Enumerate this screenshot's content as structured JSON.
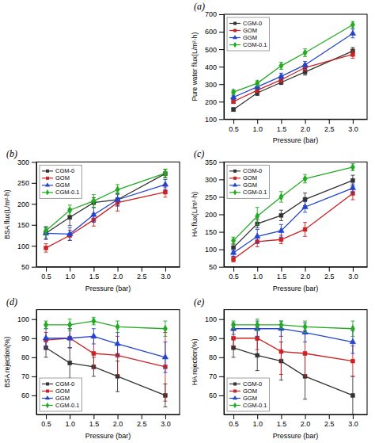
{
  "chart_data": [
    {
      "type": "line",
      "title": "(a)",
      "x_label": "Pressure (bar)",
      "y_label": "Pure water flux(L/m²·h)",
      "x": [
        0.5,
        1.0,
        1.5,
        2.0,
        3.0
      ],
      "xlim": [
        0.3,
        3.3
      ],
      "xticks": [
        0.5,
        {
          "value": 1.0,
          "label": "1.0"
        },
        1.5,
        {
          "value": 2.0,
          "label": "2.0"
        },
        2.5,
        {
          "value": 3.0,
          "label": "3.0"
        }
      ],
      "ylim": [
        100,
        700
      ],
      "yticks": [
        100,
        200,
        300,
        400,
        500,
        600,
        700
      ],
      "grid": false,
      "legend": "upper left",
      "series": [
        {
          "name": "CGM-0",
          "color": "#333333",
          "marker": "square",
          "values": [
            155,
            250,
            310,
            370,
            490
          ],
          "errors": [
            10,
            15,
            12,
            18,
            20
          ]
        },
        {
          "name": "GOM",
          "color": "#cc2222",
          "marker": "square",
          "values": [
            200,
            265,
            325,
            395,
            470
          ],
          "errors": [
            10,
            12,
            15,
            18,
            22
          ]
        },
        {
          "name": "GGM",
          "color": "#2244cc",
          "marker": "triangle",
          "values": [
            225,
            285,
            345,
            410,
            590
          ],
          "errors": [
            12,
            15,
            18,
            20,
            25
          ]
        },
        {
          "name": "CGM-0.1",
          "color": "#22aa22",
          "marker": "diamond",
          "values": [
            255,
            305,
            405,
            480,
            640
          ],
          "errors": [
            12,
            15,
            20,
            22,
            18
          ]
        }
      ]
    },
    {
      "type": "line",
      "title": "(b)",
      "x_label": "Pressure (bar)",
      "y_label": "BSA flux(L/m²·h)",
      "x": [
        0.5,
        1.0,
        1.5,
        2.0,
        3.0
      ],
      "xlim": [
        0.3,
        3.3
      ],
      "xticks": [
        0.5,
        {
          "value": 1.0,
          "label": "1.0"
        },
        1.5,
        {
          "value": 2.0,
          "label": "2.0"
        },
        2.5,
        {
          "value": 3.0,
          "label": "3.0"
        }
      ],
      "ylim": [
        50,
        300
      ],
      "yticks": [
        50,
        100,
        150,
        200,
        250,
        300
      ],
      "grid": false,
      "legend": "upper left",
      "series": [
        {
          "name": "CGM-0",
          "color": "#333333",
          "marker": "square",
          "values": [
            130,
            168,
            203,
            210,
            272
          ],
          "errors": [
            15,
            20,
            12,
            15,
            10
          ]
        },
        {
          "name": "GOM",
          "color": "#cc2222",
          "marker": "square",
          "values": [
            95,
            125,
            162,
            203,
            228
          ],
          "errors": [
            10,
            12,
            15,
            20,
            12
          ]
        },
        {
          "name": "GGM",
          "color": "#2244cc",
          "marker": "triangle",
          "values": [
            130,
            128,
            174,
            210,
            246
          ],
          "errors": [
            12,
            15,
            18,
            15,
            12
          ]
        },
        {
          "name": "CGM-0.1",
          "color": "#22aa22",
          "marker": "diamond",
          "values": [
            136,
            185,
            207,
            234,
            273
          ],
          "errors": [
            10,
            12,
            15,
            12,
            10
          ]
        }
      ]
    },
    {
      "type": "line",
      "title": "(c)",
      "x_label": "Pressure (bar)",
      "y_label": "HA flux(L/m²·h)",
      "x": [
        0.5,
        1.0,
        1.5,
        2.0,
        3.0
      ],
      "xlim": [
        0.3,
        3.3
      ],
      "xticks": [
        0.5,
        {
          "value": 1.0,
          "label": "1.0"
        },
        1.5,
        {
          "value": 2.0,
          "label": "2.0"
        },
        2.5,
        {
          "value": 3.0,
          "label": "3.0"
        }
      ],
      "ylim": [
        50,
        350
      ],
      "yticks": [
        50,
        100,
        150,
        200,
        250,
        300,
        350
      ],
      "grid": false,
      "legend": "upper left",
      "series": [
        {
          "name": "CGM-0",
          "color": "#333333",
          "marker": "square",
          "values": [
            105,
            173,
            197,
            243,
            297
          ],
          "errors": [
            10,
            12,
            15,
            18,
            15
          ]
        },
        {
          "name": "GOM",
          "color": "#cc2222",
          "marker": "square",
          "values": [
            72,
            122,
            128,
            157,
            260
          ],
          "errors": [
            8,
            15,
            12,
            20,
            18
          ]
        },
        {
          "name": "GGM",
          "color": "#2244cc",
          "marker": "triangle",
          "values": [
            90,
            137,
            153,
            221,
            275
          ],
          "errors": [
            10,
            20,
            18,
            15,
            12
          ]
        },
        {
          "name": "CGM-0.1",
          "color": "#22aa22",
          "marker": "diamond",
          "values": [
            125,
            195,
            250,
            302,
            335
          ],
          "errors": [
            10,
            25,
            15,
            12,
            10
          ]
        }
      ]
    },
    {
      "type": "line",
      "title": "(d)",
      "x_label": "Pressure (bar)",
      "y_label": "BSA rejection(%)",
      "x": [
        0.5,
        1.0,
        1.5,
        2.0,
        3.0
      ],
      "xlim": [
        0.3,
        3.3
      ],
      "xticks": [
        0.5,
        {
          "value": 1.0,
          "label": "1.0"
        },
        1.5,
        {
          "value": 2.0,
          "label": "2.0"
        },
        2.5,
        {
          "value": 3.0,
          "label": "3.0"
        }
      ],
      "ylim": [
        50,
        105
      ],
      "yticks": [
        60,
        70,
        80,
        90,
        100
      ],
      "grid": false,
      "legend": "lower left",
      "series": [
        {
          "name": "CGM-0",
          "color": "#333333",
          "marker": "square",
          "values": [
            85,
            77,
            75,
            70,
            60
          ],
          "errors": [
            5,
            8,
            5,
            8,
            6
          ]
        },
        {
          "name": "GOM",
          "color": "#cc2222",
          "marker": "square",
          "values": [
            89,
            90,
            82,
            81,
            75
          ],
          "errors": [
            4,
            5,
            8,
            10,
            18
          ]
        },
        {
          "name": "GGM",
          "color": "#2244cc",
          "marker": "triangle",
          "values": [
            90,
            90,
            91,
            87,
            80
          ],
          "errors": [
            5,
            5,
            4,
            6,
            8
          ]
        },
        {
          "name": "CGM-0.1",
          "color": "#22aa22",
          "marker": "diamond",
          "values": [
            97,
            97,
            99,
            96,
            95
          ],
          "errors": [
            2,
            3,
            2,
            3,
            4
          ]
        }
      ]
    },
    {
      "type": "line",
      "title": "(e)",
      "x_label": "Pressure (bar)",
      "y_label": "HA rejection(%)",
      "x": [
        0.5,
        1.0,
        1.5,
        2.0,
        3.0
      ],
      "xlim": [
        0.3,
        3.3
      ],
      "xticks": [
        0.5,
        {
          "value": 1.0,
          "label": "1.0"
        },
        1.5,
        {
          "value": 2.0,
          "label": "2.0"
        },
        2.5,
        {
          "value": 3.0,
          "label": "3.0"
        }
      ],
      "ylim": [
        50,
        105
      ],
      "yticks": [
        60,
        70,
        80,
        90,
        100
      ],
      "grid": false,
      "legend": "lower left",
      "series": [
        {
          "name": "CGM-0",
          "color": "#333333",
          "marker": "square",
          "values": [
            85,
            81,
            78,
            70,
            60
          ],
          "errors": [
            5,
            8,
            10,
            12,
            10
          ]
        },
        {
          "name": "GOM",
          "color": "#cc2222",
          "marker": "square",
          "values": [
            90,
            90,
            83,
            82,
            78
          ],
          "errors": [
            4,
            6,
            12,
            12,
            8
          ]
        },
        {
          "name": "GGM",
          "color": "#2244cc",
          "marker": "triangle",
          "values": [
            95,
            95,
            95,
            93,
            88
          ],
          "errors": [
            3,
            4,
            4,
            5,
            6
          ]
        },
        {
          "name": "CGM-0.1",
          "color": "#22aa22",
          "marker": "diamond",
          "values": [
            97,
            97,
            97,
            96,
            95
          ],
          "errors": [
            2,
            3,
            2,
            3,
            4
          ]
        }
      ]
    }
  ]
}
